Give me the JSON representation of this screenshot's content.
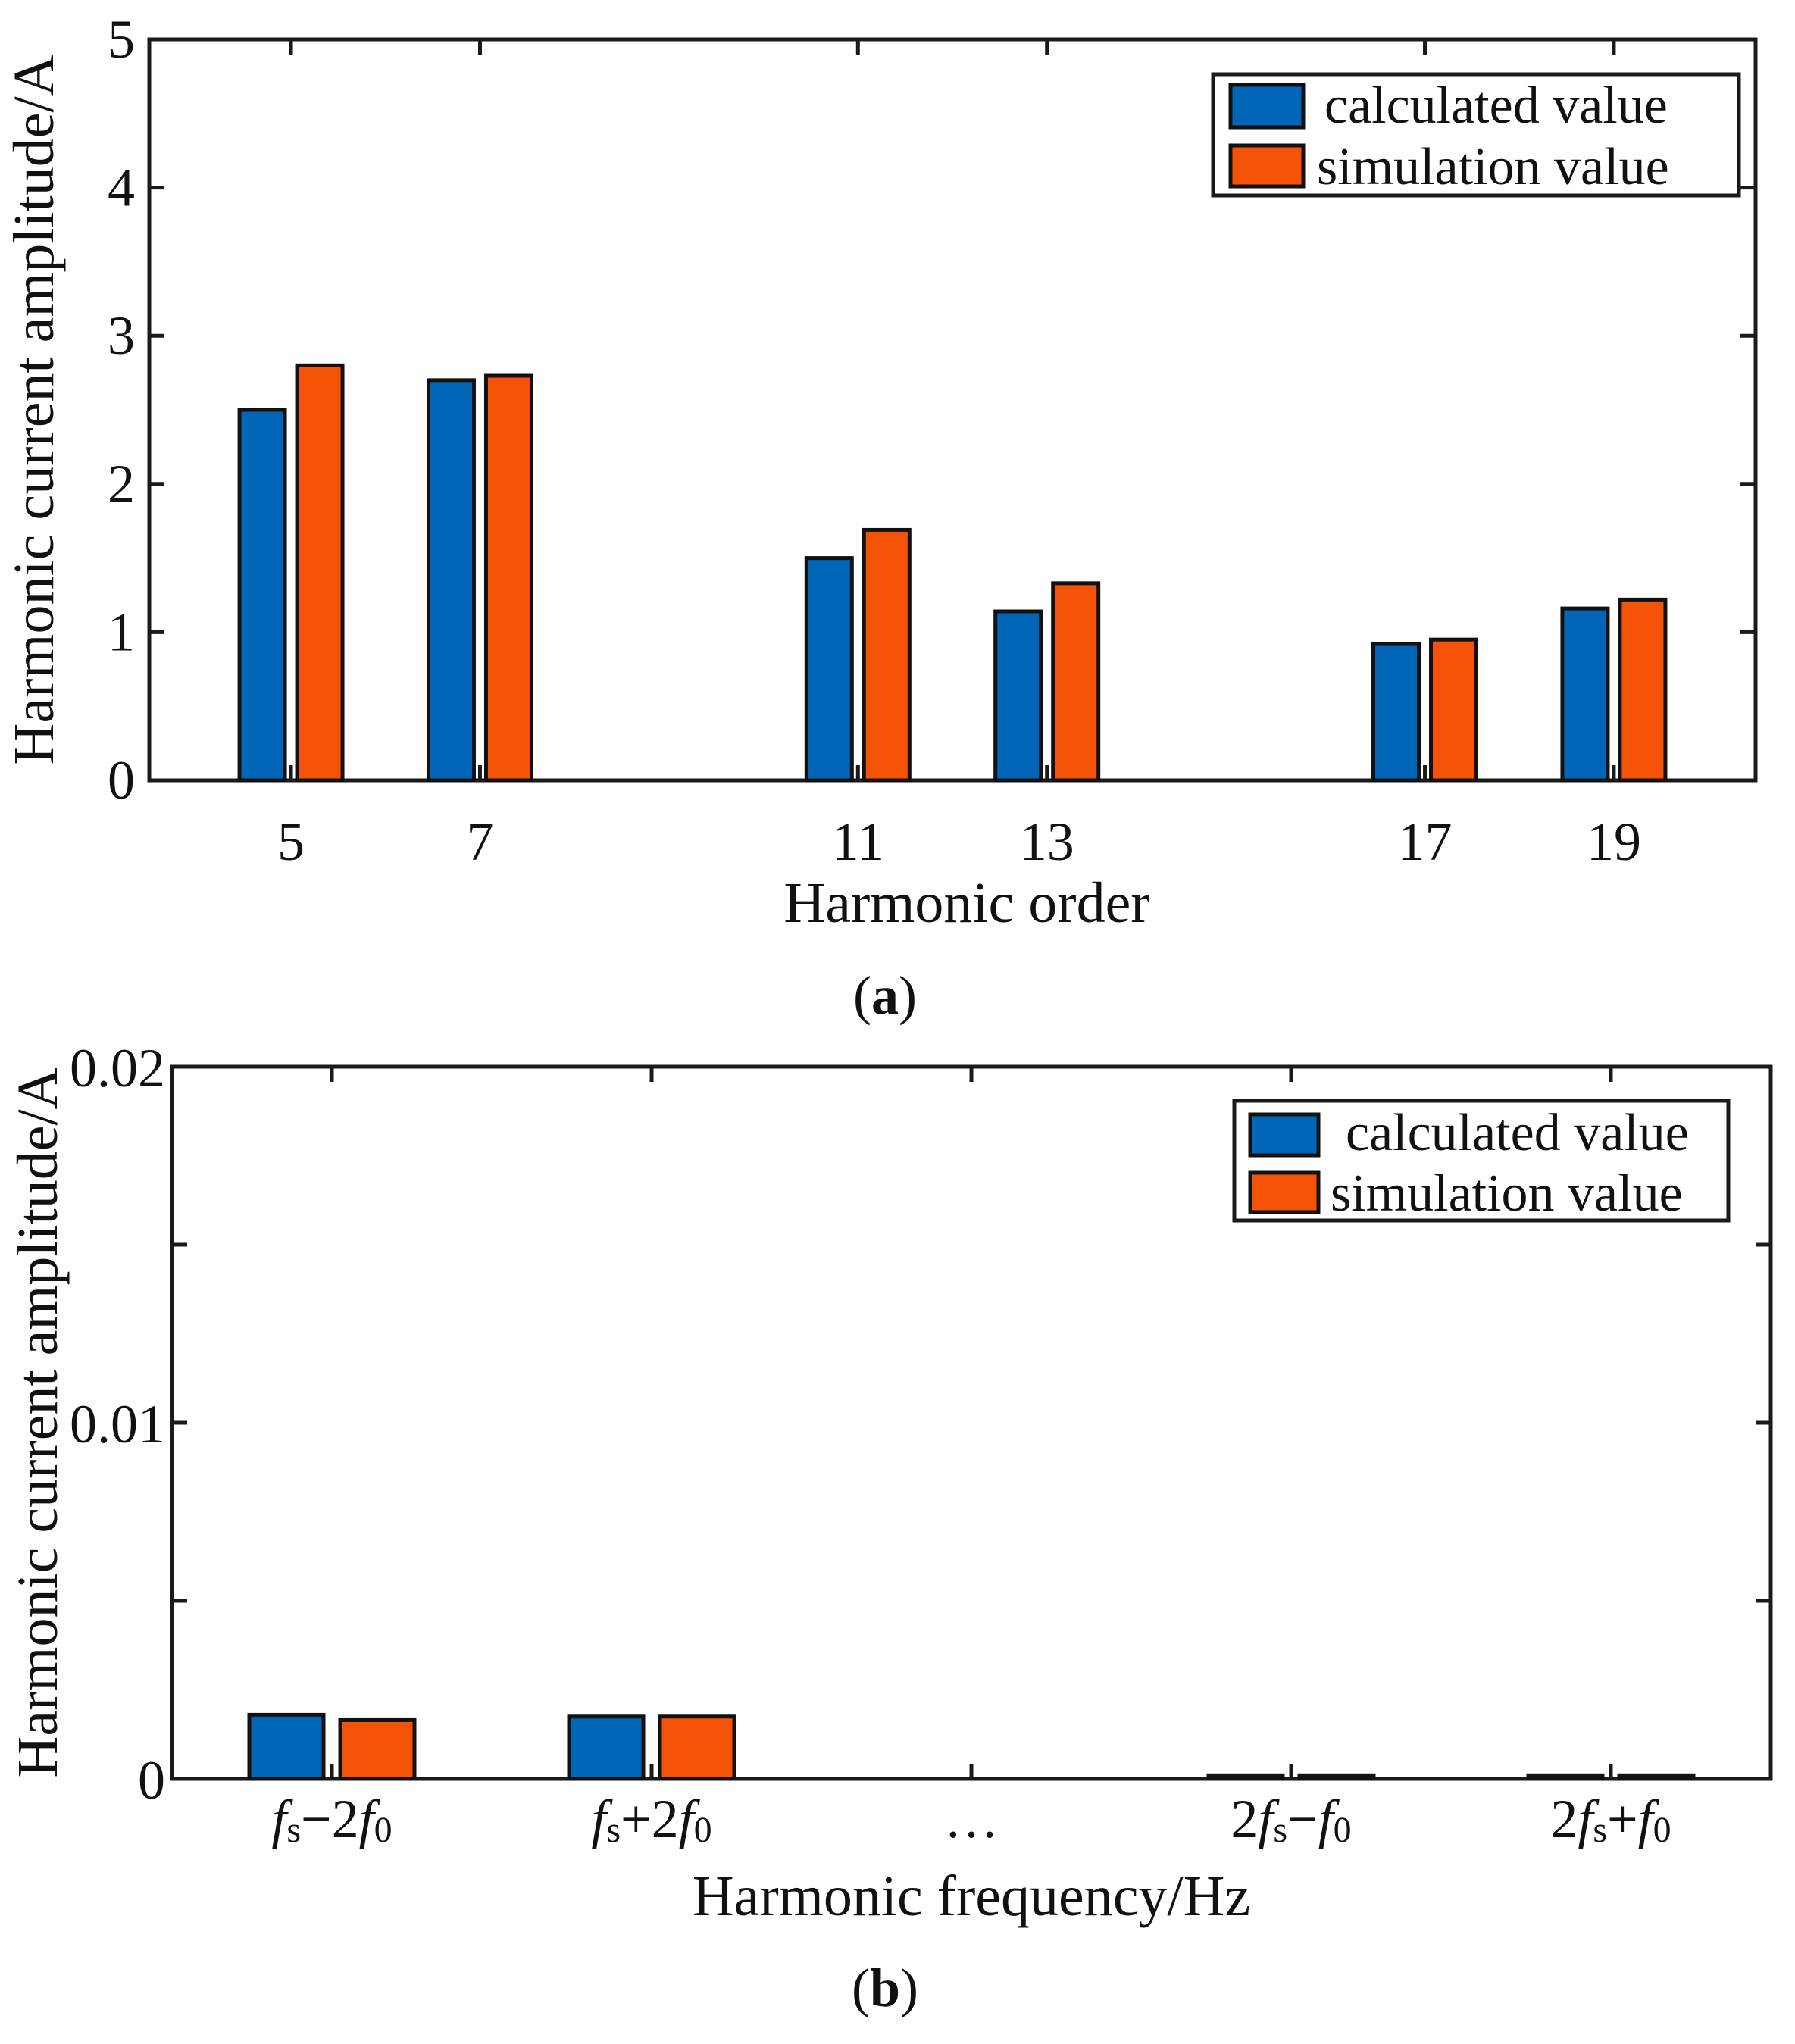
{
  "colors": {
    "calculated": "#0066B8",
    "simulation": "#F35207",
    "axis": "#1A1A1A"
  },
  "chart_data": [
    {
      "type": "bar",
      "panel": "a",
      "panel_label_open": "(",
      "panel_label_letter": "a",
      "panel_label_close": ")",
      "xlabel": "Harmonic order",
      "ylabel": "Harmonic current amplitude/A",
      "ylim": [
        0,
        5
      ],
      "yticks": [
        0,
        1,
        2,
        3,
        4,
        5
      ],
      "ytick_labels": [
        "0",
        "1",
        "2",
        "3",
        "4",
        "5"
      ],
      "xlim": [
        3.5,
        20.5
      ],
      "x": [
        5,
        7,
        11,
        13,
        17,
        19
      ],
      "xtick_labels": [
        "5",
        "7",
        "11",
        "13",
        "17",
        "19"
      ],
      "legend_position": "top-right",
      "series": [
        {
          "name": "calculated value",
          "values": [
            2.5,
            2.7,
            1.5,
            1.14,
            0.92,
            1.16
          ]
        },
        {
          "name": "simulation value",
          "values": [
            2.8,
            2.73,
            1.69,
            1.33,
            0.95,
            1.22
          ]
        }
      ]
    },
    {
      "type": "bar",
      "panel": "b",
      "panel_label_open": "(",
      "panel_label_letter": "b",
      "panel_label_close": ")",
      "xlabel": "Harmonic frequency/Hz",
      "ylabel": "Harmonic current amplitude/A",
      "ylim": [
        0,
        0.02
      ],
      "yticks": [
        0,
        0.005,
        0.01,
        0.015,
        0.02
      ],
      "ytick_labels": [
        "0",
        "",
        "0.01",
        "",
        "0.02"
      ],
      "xlim": [
        0.5,
        5.5
      ],
      "x": [
        1,
        2,
        3,
        4,
        5
      ],
      "categories": [
        {
          "parts": [
            [
              "f",
              "i"
            ],
            [
              "s",
              "sub"
            ],
            [
              "−2",
              "n"
            ],
            [
              "f",
              "i"
            ],
            [
              "0",
              "sub"
            ]
          ]
        },
        {
          "parts": [
            [
              "f",
              "i"
            ],
            [
              "s",
              "sub"
            ],
            [
              "+2",
              "n"
            ],
            [
              "f",
              "i"
            ],
            [
              "0",
              "sub"
            ]
          ]
        },
        {
          "parts": [
            [
              "…",
              "n"
            ]
          ]
        },
        {
          "parts": [
            [
              "2",
              "n"
            ],
            [
              "f",
              "i"
            ],
            [
              "s",
              "sub"
            ],
            [
              "−",
              "n"
            ],
            [
              "f",
              "i"
            ],
            [
              "0",
              "sub"
            ]
          ]
        },
        {
          "parts": [
            [
              "2",
              "n"
            ],
            [
              "f",
              "i"
            ],
            [
              "s",
              "sub"
            ],
            [
              "+",
              "n"
            ],
            [
              "f",
              "i"
            ],
            [
              "0",
              "sub"
            ]
          ]
        }
      ],
      "legend_position": "top-right",
      "series": [
        {
          "name": "calculated value",
          "values": [
            0.0018,
            0.00175,
            null,
            0.0001,
            0.0001
          ]
        },
        {
          "name": "simulation value",
          "values": [
            0.00165,
            0.00175,
            null,
            0.0001,
            0.0001
          ]
        }
      ]
    }
  ]
}
